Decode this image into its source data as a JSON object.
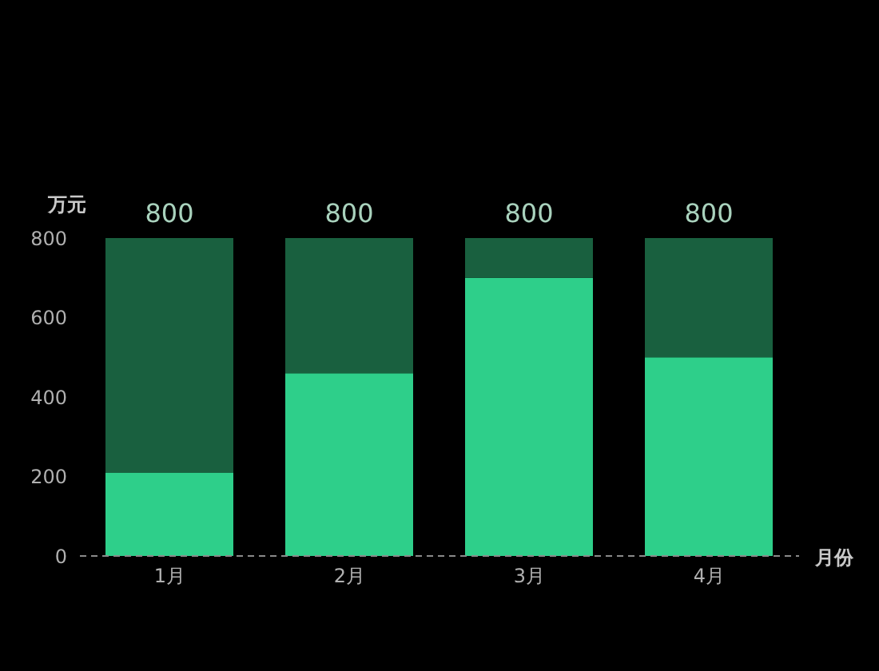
{
  "chart_data": {
    "type": "bar",
    "xlabel": "月份",
    "ylabel": "万元",
    "categories": [
      "1月",
      "2月",
      "3月",
      "4月"
    ],
    "stacked": true,
    "series": [
      {
        "color": "#2ecf8a",
        "values": [
          210,
          460,
          700,
          500
        ]
      },
      {
        "color": "#19603f",
        "values": [
          590,
          340,
          100,
          300
        ]
      }
    ],
    "totals": [
      "800",
      "800",
      "800",
      "800"
    ],
    "ylim": [
      0,
      800
    ],
    "yticks": [
      0,
      200,
      400,
      600,
      800
    ]
  }
}
